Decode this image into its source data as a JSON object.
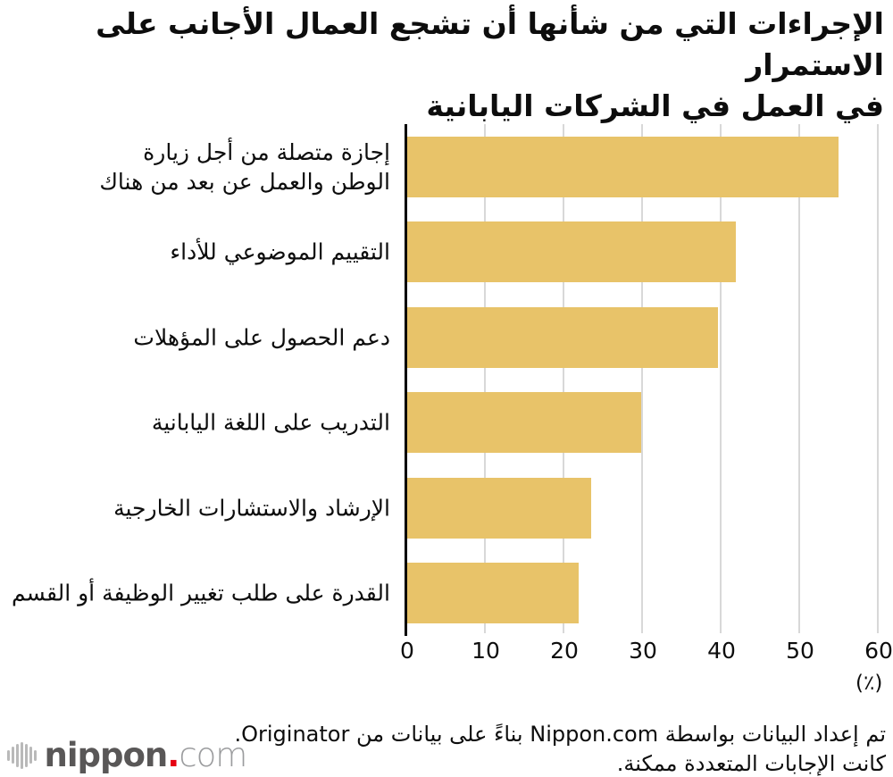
{
  "title": "الإجراءات التي من شأنها أن تشجع العمال الأجانب على الاستمرار\nفي العمل في الشركات اليابانية",
  "chart_data": {
    "type": "bar",
    "orientation": "horizontal",
    "title": "الإجراءات التي من شأنها أن تشجع العمال الأجانب على الاستمرار في العمل في الشركات اليابانية",
    "categories": [
      "إجازة متصلة من أجل زيارة\nالوطن والعمل عن بعد من هناك",
      "التقييم الموضوعي للأداء",
      "دعم الحصول على المؤهلات",
      "التدريب على اللغة اليابانية",
      "الإرشاد والاستشارات الخارجية",
      "القدرة على طلب تغيير الوظيفة أو القسم"
    ],
    "values": [
      54.9,
      41.8,
      39.5,
      29.8,
      23.4,
      21.8
    ],
    "x_ticks": [
      0,
      10,
      20,
      30,
      40,
      50,
      60
    ],
    "xlim": [
      0,
      60
    ],
    "xlabel": "",
    "ylabel": "",
    "unit_label": "(٪)",
    "grid": true,
    "legend": "none",
    "bar_color": "#e8c369",
    "gridline_color": "#d8d8d8",
    "axis_color": "#000000"
  },
  "footer": {
    "line1": "تم إعداد البيانات بواسطة Nippon.com بناءً على بيانات من Originator.",
    "line2": "كانت الإجابات المتعددة ممكنة."
  },
  "logo": {
    "name": "nippon",
    "dot": ".",
    "tld": "com",
    "icon": "waveform-icon",
    "name_color": "#595757",
    "dot_color": "#e60012",
    "tld_color": "#9b9c9e"
  }
}
